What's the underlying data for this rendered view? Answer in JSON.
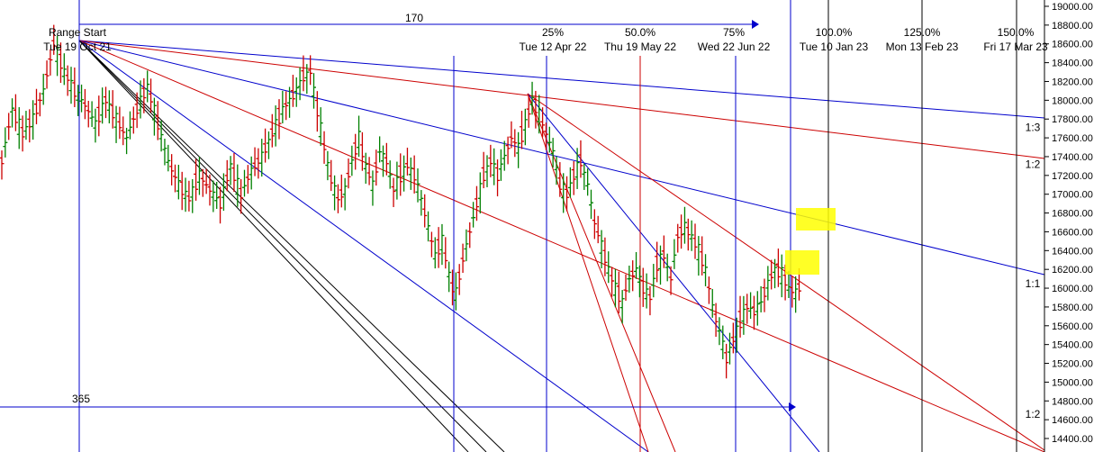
{
  "chart_data": {
    "type": "bar",
    "subtype": "ohlc-price-chart-with-gann-fans",
    "title": "",
    "xlabel": "",
    "ylabel": "",
    "ylim": [
      14300,
      19050
    ],
    "y_ticks": [
      19000,
      18800,
      18600,
      18400,
      18200,
      18000,
      17800,
      17600,
      17400,
      17200,
      17000,
      16800,
      16600,
      16400,
      16200,
      16000,
      15800,
      15600,
      15400,
      15200,
      15000,
      14800,
      14600,
      14400
    ],
    "y_tick_labels": [
      "19000.00",
      "18800.00",
      "18600.00",
      "18400.00",
      "18200.00",
      "18000.00",
      "17800.00",
      "17600.00",
      "17400.00",
      "17200.00",
      "17000.00",
      "16800.00",
      "16600.00",
      "16400.00",
      "16200.00",
      "16000.00",
      "15800.00",
      "15600.00",
      "15400.00",
      "15200.00",
      "15000.00",
      "14800.00",
      "14600.00",
      "14400.00"
    ],
    "range_start": {
      "label": "Range Start",
      "date": "Tue 19 Oct 21"
    },
    "range_bars_label": "170",
    "range_price_label": "365",
    "time_levels": [
      {
        "pct": "25%",
        "date": "Tue 12 Apr 22"
      },
      {
        "pct": "50.0%",
        "date": "Thu 19 May 22"
      },
      {
        "pct": "75%",
        "date": "Wed 22 Jun 22"
      },
      {
        "pct": "100.0%",
        "date": "Tue 10 Jan 23"
      },
      {
        "pct": "125.0%",
        "date": "Mon 13 Feb 23"
      },
      {
        "pct": "150.0%",
        "date": "Fri 17 Mar 23"
      }
    ],
    "ratio_labels": [
      {
        "text": "1:3",
        "y": 17710
      },
      {
        "text": "1:2",
        "y": 17320
      },
      {
        "text": "1:1",
        "y": 16050
      },
      {
        "text": "1:2",
        "y": 14660
      }
    ],
    "price_segments": [
      [
        [
          0,
          17350
        ],
        [
          6,
          17900
        ],
        [
          12,
          17650
        ],
        [
          18,
          17800
        ],
        [
          24,
          18100
        ],
        [
          30,
          18600
        ],
        [
          36,
          18300
        ],
        [
          42,
          18100
        ],
        [
          48,
          17950
        ],
        [
          54,
          17750
        ],
        [
          60,
          18000
        ],
        [
          66,
          17800
        ],
        [
          72,
          17600
        ],
        [
          78,
          17900
        ],
        [
          84,
          18150
        ],
        [
          90,
          17750
        ],
        [
          96,
          17350
        ],
        [
          102,
          17100
        ],
        [
          108,
          16950
        ],
        [
          114,
          17200
        ],
        [
          120,
          17050
        ],
        [
          126,
          16900
        ],
        [
          132,
          17300
        ],
        [
          138,
          17000
        ],
        [
          144,
          17250
        ],
        [
          150,
          17400
        ],
        [
          156,
          17650
        ],
        [
          162,
          17900
        ],
        [
          168,
          18050
        ],
        [
          174,
          18250
        ],
        [
          178,
          18300
        ],
        [
          182,
          17900
        ],
        [
          186,
          17500
        ],
        [
          190,
          17150
        ],
        [
          194,
          16950
        ],
        [
          198,
          17050
        ],
        [
          202,
          17350
        ],
        [
          206,
          17600
        ],
        [
          210,
          17300
        ],
        [
          214,
          17100
        ],
        [
          218,
          17450
        ],
        [
          222,
          17350
        ],
        [
          226,
          17050
        ],
        [
          230,
          17200
        ],
        [
          234,
          17300
        ],
        [
          238,
          17200
        ],
        [
          242,
          16950
        ],
        [
          246,
          16650
        ],
        [
          250,
          16350
        ],
        [
          254,
          16500
        ],
        [
          258,
          16150
        ],
        [
          262,
          15850
        ]
      ],
      [
        [
          262,
          15950
        ],
        [
          266,
          16300
        ],
        [
          270,
          16600
        ],
        [
          274,
          16900
        ],
        [
          278,
          17200
        ],
        [
          282,
          17350
        ],
        [
          286,
          17200
        ],
        [
          290,
          17400
        ],
        [
          294,
          17600
        ],
        [
          298,
          17500
        ],
        [
          302,
          17750
        ],
        [
          306,
          18000
        ],
        [
          310,
          17850
        ],
        [
          314,
          17650
        ],
        [
          318,
          17450
        ],
        [
          322,
          17100
        ],
        [
          326,
          17000
        ],
        [
          330,
          17200
        ],
        [
          334,
          17350
        ],
        [
          338,
          17100
        ],
        [
          342,
          16700
        ],
        [
          346,
          16450
        ],
        [
          350,
          16200
        ],
        [
          354,
          16000
        ],
        [
          358,
          15850
        ],
        [
          362,
          16100
        ],
        [
          366,
          16200
        ],
        [
          370,
          16000
        ],
        [
          374,
          15900
        ],
        [
          378,
          16250
        ],
        [
          382,
          16350
        ],
        [
          386,
          16100
        ],
        [
          390,
          16550
        ],
        [
          394,
          16650
        ],
        [
          398,
          16550
        ],
        [
          402,
          16400
        ],
        [
          406,
          16200
        ],
        [
          410,
          15800
        ],
        [
          414,
          15550
        ],
        [
          418,
          15250
        ],
        [
          422,
          15450
        ],
        [
          426,
          15650
        ],
        [
          430,
          15800
        ],
        [
          434,
          15750
        ],
        [
          438,
          15850
        ],
        [
          442,
          16050
        ],
        [
          446,
          16200
        ],
        [
          450,
          16150
        ],
        [
          454,
          16000
        ],
        [
          458,
          15950
        ],
        [
          462,
          16050
        ]
      ]
    ]
  }
}
